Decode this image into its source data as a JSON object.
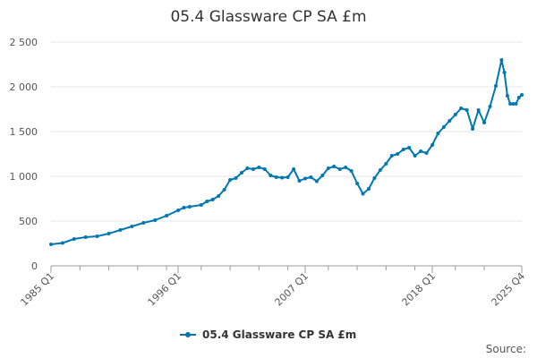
{
  "chart_data": {
    "type": "line",
    "title": "05.4 Glassware CP SA £m",
    "xlabel": "",
    "ylabel": "",
    "ylim": [
      0,
      2500
    ],
    "yticks": [
      0,
      500,
      1000,
      1500,
      2000,
      2500
    ],
    "ytick_labels": [
      "0",
      "500",
      "1 000",
      "1 500",
      "2 000",
      "2 500"
    ],
    "xrange": [
      "1985 Q1",
      "2025 Q4"
    ],
    "xtick_labels": [
      "1985 Q1",
      "1996 Q1",
      "2007 Q1",
      "2018 Q1",
      "2025 Q4"
    ],
    "xtick_values": [
      "1985 Q1",
      "1996 Q1",
      "2007 Q1",
      "2018 Q1",
      "2025 Q4"
    ],
    "minor_xticks": [
      "1987 Q3",
      "1990 Q1",
      "1992 Q3",
      "1995 Q1",
      "1998 Q1",
      "2000 Q3",
      "2003 Q1",
      "2005 Q3",
      "2009 Q1",
      "2011 Q3",
      "2014 Q1",
      "2016 Q3",
      "2020 Q1",
      "2022 Q3"
    ],
    "grid": true,
    "legend_position": "bottom",
    "series": [
      {
        "name": "05.4 Glassware CP SA £m",
        "color": "#0077b3",
        "points": [
          [
            "1985 Q1",
            240
          ],
          [
            "1986 Q1",
            255
          ],
          [
            "1987 Q1",
            300
          ],
          [
            "1988 Q1",
            320
          ],
          [
            "1989 Q1",
            330
          ],
          [
            "1990 Q1",
            360
          ],
          [
            "1991 Q1",
            400
          ],
          [
            "1992 Q1",
            440
          ],
          [
            "1993 Q1",
            480
          ],
          [
            "1994 Q1",
            510
          ],
          [
            "1995 Q1",
            560
          ],
          [
            "1996 Q1",
            620
          ],
          [
            "1996 Q3",
            650
          ],
          [
            "1997 Q1",
            660
          ],
          [
            "1998 Q1",
            680
          ],
          [
            "1998 Q3",
            720
          ],
          [
            "1999 Q1",
            740
          ],
          [
            "1999 Q3",
            780
          ],
          [
            "2000 Q1",
            850
          ],
          [
            "2000 Q3",
            960
          ],
          [
            "2001 Q1",
            980
          ],
          [
            "2001 Q3",
            1040
          ],
          [
            "2002 Q1",
            1090
          ],
          [
            "2002 Q3",
            1080
          ],
          [
            "2003 Q1",
            1100
          ],
          [
            "2003 Q3",
            1080
          ],
          [
            "2004 Q1",
            1010
          ],
          [
            "2004 Q3",
            990
          ],
          [
            "2005 Q1",
            985
          ],
          [
            "2005 Q3",
            990
          ],
          [
            "2006 Q1",
            1080
          ],
          [
            "2006 Q3",
            950
          ],
          [
            "2007 Q1",
            975
          ],
          [
            "2007 Q3",
            990
          ],
          [
            "2008 Q1",
            945
          ],
          [
            "2008 Q3",
            1010
          ],
          [
            "2009 Q1",
            1090
          ],
          [
            "2009 Q3",
            1110
          ],
          [
            "2010 Q1",
            1080
          ],
          [
            "2010 Q3",
            1100
          ],
          [
            "2011 Q1",
            1060
          ],
          [
            "2011 Q3",
            920
          ],
          [
            "2012 Q1",
            805
          ],
          [
            "2012 Q3",
            860
          ],
          [
            "2013 Q1",
            980
          ],
          [
            "2013 Q3",
            1070
          ],
          [
            "2014 Q1",
            1140
          ],
          [
            "2014 Q3",
            1230
          ],
          [
            "2015 Q1",
            1250
          ],
          [
            "2015 Q3",
            1300
          ],
          [
            "2016 Q1",
            1320
          ],
          [
            "2016 Q3",
            1230
          ],
          [
            "2017 Q1",
            1280
          ],
          [
            "2017 Q3",
            1260
          ],
          [
            "2018 Q1",
            1350
          ],
          [
            "2018 Q3",
            1480
          ],
          [
            "2019 Q1",
            1550
          ],
          [
            "2019 Q3",
            1620
          ],
          [
            "2020 Q1",
            1690
          ],
          [
            "2020 Q3",
            1760
          ],
          [
            "2021 Q1",
            1740
          ],
          [
            "2021 Q3",
            1530
          ],
          [
            "2022 Q1",
            1740
          ],
          [
            "2022 Q3",
            1600
          ],
          [
            "2023 Q1",
            1780
          ],
          [
            "2023 Q3",
            2010
          ],
          [
            "2024 Q1",
            2300
          ],
          [
            "2024 Q2",
            2160
          ],
          [
            "2024 Q3",
            1900
          ],
          [
            "2024 Q4",
            1810
          ],
          [
            "2025 Q1",
            1810
          ],
          [
            "2025 Q2",
            1810
          ],
          [
            "2025 Q3",
            1880
          ],
          [
            "2025 Q4",
            1910
          ]
        ]
      }
    ],
    "source_label": "Source:"
  }
}
